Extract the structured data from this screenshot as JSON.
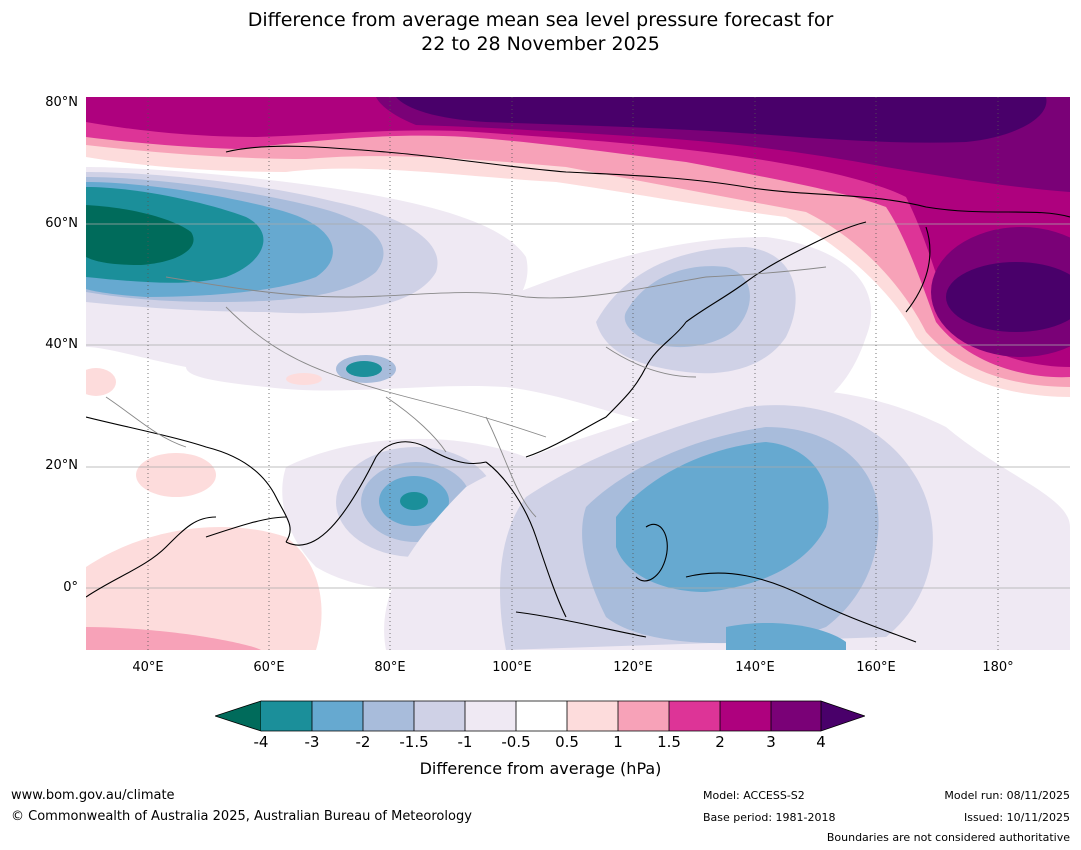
{
  "title": {
    "line1": "Difference from average mean sea level pressure forecast for",
    "line2": "22 to 28 November 2025"
  },
  "map": {
    "lat_labels": [
      "80°N",
      "60°N",
      "40°N",
      "20°N",
      "0°"
    ],
    "lon_labels": [
      "40°E",
      "60°E",
      "80°E",
      "100°E",
      "120°E",
      "140°E",
      "160°E",
      "180°"
    ],
    "colors": {
      "neg4": "#006b5b",
      "neg3": "#1b8f9a",
      "neg2": "#66a9d0",
      "neg15": "#a8bcdb",
      "neg1": "#cfd1e6",
      "neg05": "#efe9f3",
      "zero": "#ffffff",
      "pos05": "#fddcdc",
      "pos1": "#f7a2b8",
      "pos15": "#dd3497",
      "pos2": "#ae017e",
      "pos3": "#7a0177",
      "pos4": "#49006a"
    }
  },
  "colorbar": {
    "ticks": [
      "-4",
      "-3",
      "-2",
      "-1.5",
      "-1",
      "-0.5",
      "0.5",
      "1",
      "1.5",
      "2",
      "3",
      "4"
    ],
    "label": "Difference from average (hPa)"
  },
  "footer": {
    "website": "www.bom.gov.au/climate",
    "copyright": "© Commonwealth of Australia 2025, Australian Bureau of Meteorology",
    "model": "Model: ACCESS-S2",
    "base_period": "Base period: 1981-2018",
    "model_run": "Model run: 08/11/2025",
    "issued": "Issued: 10/11/2025",
    "disclaimer": "Boundaries are not considered authoritative"
  }
}
